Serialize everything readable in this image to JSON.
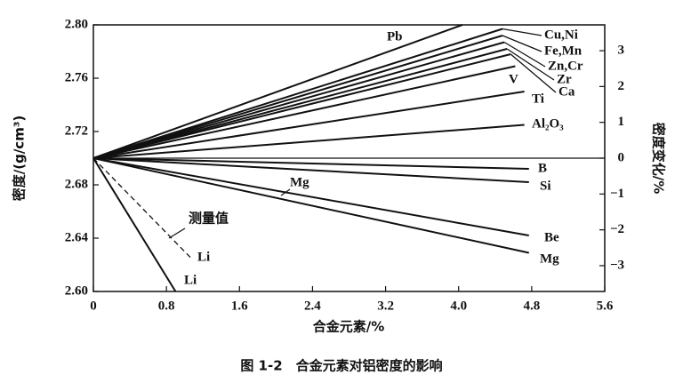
{
  "chart_data": {
    "type": "line",
    "title": "图 1-2　合金元素对铝密度的影响",
    "x_label": "合金元素/%",
    "y_label": "密度/(g/cm³)",
    "y2_label": "密度变化/%",
    "xlim": [
      0,
      5.6
    ],
    "xticks": [
      0,
      0.8,
      1.6,
      2.4,
      3.2,
      {
        "value": 4,
        "label": "4.0"
      },
      4.8,
      5.6
    ],
    "ylim": [
      2.6,
      2.8
    ],
    "yticks": [
      {
        "value": 2.6,
        "label": "2.60"
      },
      2.64,
      2.68,
      2.72,
      2.76,
      {
        "value": 2.8,
        "label": "2.80"
      }
    ],
    "y2lim": [
      -3.72,
      3.72
    ],
    "y2ticks": [
      {
        "value": -3,
        "label": "−3"
      },
      {
        "value": -2,
        "label": "−2"
      },
      {
        "value": -1,
        "label": "−1"
      },
      0,
      1,
      2,
      3
    ],
    "color": "#111111",
    "series": [
      {
        "name": "Pb",
        "x": [
          0,
          4.04
        ],
        "values": [
          2.7,
          2.8
        ]
      },
      {
        "name": "Cu,Ni",
        "x": [
          0,
          4.48
        ],
        "values": [
          2.7,
          2.797
        ]
      },
      {
        "name": "Fe,Mn",
        "x": [
          0,
          4.48
        ],
        "values": [
          2.7,
          2.792
        ]
      },
      {
        "name": "Zn,Cr",
        "x": [
          0,
          4.5
        ],
        "values": [
          2.7,
          2.787
        ]
      },
      {
        "name": "Zr",
        "x": [
          0,
          4.53
        ],
        "values": [
          2.7,
          2.782
        ]
      },
      {
        "name": "Ca",
        "x": [
          0,
          4.57
        ],
        "values": [
          2.7,
          2.778
        ]
      },
      {
        "name": "V",
        "x": [
          0,
          4.62
        ],
        "values": [
          2.7,
          2.769
        ]
      },
      {
        "name": "Ti",
        "x": [
          0,
          4.72
        ],
        "values": [
          2.7,
          2.75
        ]
      },
      {
        "name": "Al₂O₃",
        "x": [
          0,
          4.72
        ],
        "values": [
          2.7,
          2.725
        ]
      },
      {
        "name": "B",
        "x": [
          0,
          4.77
        ],
        "values": [
          2.7,
          2.692
        ]
      },
      {
        "name": "Si",
        "x": [
          0,
          4.77
        ],
        "values": [
          2.7,
          2.682
        ]
      },
      {
        "name": "Be",
        "x": [
          0,
          4.77
        ],
        "values": [
          2.7,
          2.642
        ]
      },
      {
        "name": "Mg",
        "x": [
          0,
          4.77
        ],
        "values": [
          2.7,
          2.629
        ]
      },
      {
        "name": "Li",
        "x": [
          0,
          1.07
        ],
        "values": [
          2.7,
          2.625
        ],
        "dashed": true
      },
      {
        "name": "Li",
        "x": [
          0,
          0.9
        ],
        "values": [
          2.7,
          2.6
        ]
      }
    ],
    "annotations": [
      "测量值",
      "Mg"
    ]
  }
}
